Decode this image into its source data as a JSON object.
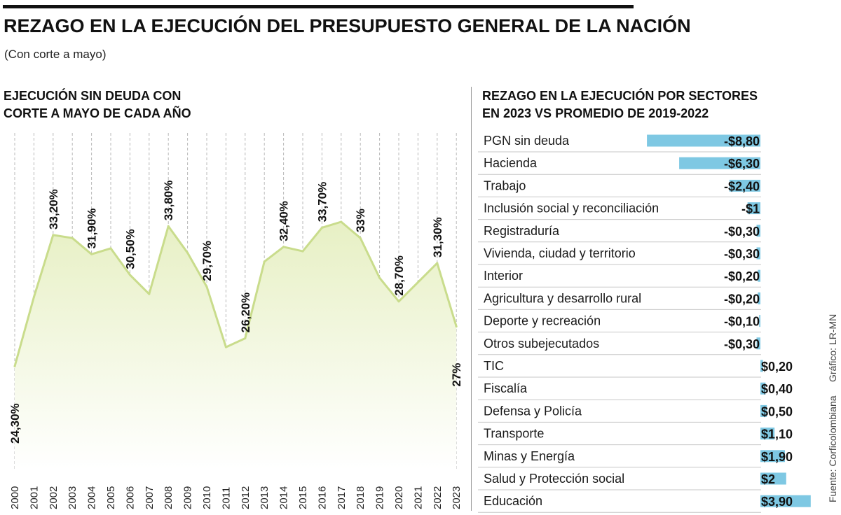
{
  "header": {
    "title": "REZAGO EN LA EJECUCIÓN DEL PRESUPUESTO GENERAL DE LA NACIÓN",
    "subtitle": "(Con corte a mayo)"
  },
  "credits": {
    "graphic": "Gráfico: LR-MN",
    "source": "Fuente: Corficolombiana"
  },
  "colors": {
    "line": "#c9dc8c",
    "area_top": "#e7f0c4",
    "area_bottom": "#ffffff",
    "bar": "#7ec8e3",
    "grid": "#b8b8b8",
    "divider": "#9a9a9a"
  },
  "chart_data": [
    {
      "type": "area",
      "title_lines": [
        "EJECUCIÓN SIN DEUDA CON",
        "CORTE A MAYO DE CADA AÑO"
      ],
      "x": [
        "2000",
        "2001",
        "2002",
        "2003",
        "2004",
        "2005",
        "2006",
        "2007",
        "2008",
        "2009",
        "2010",
        "2011",
        "2012",
        "2013",
        "2014",
        "2015",
        "2016",
        "2017",
        "2018",
        "2019",
        "2020",
        "2021",
        "2022",
        "2023"
      ],
      "values": [
        24.3,
        29.0,
        33.2,
        33.0,
        31.9,
        32.3,
        30.5,
        29.2,
        33.8,
        32.0,
        29.7,
        25.6,
        26.2,
        31.4,
        32.4,
        32.1,
        33.7,
        34.1,
        33.0,
        30.3,
        28.7,
        30.0,
        31.3,
        27.0
      ],
      "labels": [
        {
          "year": "2000",
          "text": "24,30%"
        },
        {
          "year": "2002",
          "text": "33,20%"
        },
        {
          "year": "2004",
          "text": "31,90%"
        },
        {
          "year": "2006",
          "text": "30,50%"
        },
        {
          "year": "2008",
          "text": "33,80%"
        },
        {
          "year": "2010",
          "text": "29,70%"
        },
        {
          "year": "2012",
          "text": "26,20%"
        },
        {
          "year": "2014",
          "text": "32,40%"
        },
        {
          "year": "2016",
          "text": "33,70%"
        },
        {
          "year": "2018",
          "text": "33%"
        },
        {
          "year": "2020",
          "text": "28,70%"
        },
        {
          "year": "2022",
          "text": "31,30%"
        },
        {
          "year": "2023",
          "text": "27%"
        }
      ],
      "ylim": [
        22,
        35
      ],
      "grid": "vertical-dashed"
    },
    {
      "type": "bar",
      "orientation": "horizontal",
      "title_lines": [
        "REZAGO EN LA EJECUCIÓN POR SECTORES",
        "EN 2023 VS PROMEDIO DE 2019-2022"
      ],
      "categories": [
        "PGN sin deuda",
        "Hacienda",
        "Trabajo",
        "Inclusión social y reconciliación",
        "Registraduría",
        "Vivienda, ciudad y territorio",
        "Interior",
        "Agricultura y desarrollo rural",
        "Deporte y recreación",
        "Otros subejecutados",
        "TIC",
        "Fiscalía",
        "Defensa y Policía",
        "Transporte",
        "Minas y Energía",
        "Salud y Protección social",
        "Educación"
      ],
      "values": [
        -8.8,
        -6.3,
        -2.4,
        -1,
        -0.3,
        -0.3,
        -0.2,
        -0.2,
        -0.1,
        -0.3,
        0.2,
        0.4,
        0.5,
        1.1,
        1.9,
        2,
        3.9
      ],
      "value_labels": [
        "-$8,80",
        "-$6,30",
        "-$2,40",
        "-$1",
        "-$0,30",
        "-$0,30",
        "-$0,20",
        "-$0,20",
        "-$0,10",
        "-$0,30",
        "$0,20",
        "$0,40",
        "$0,50",
        "$1,10",
        "$1,90",
        "$2",
        "$3,90"
      ]
    }
  ]
}
